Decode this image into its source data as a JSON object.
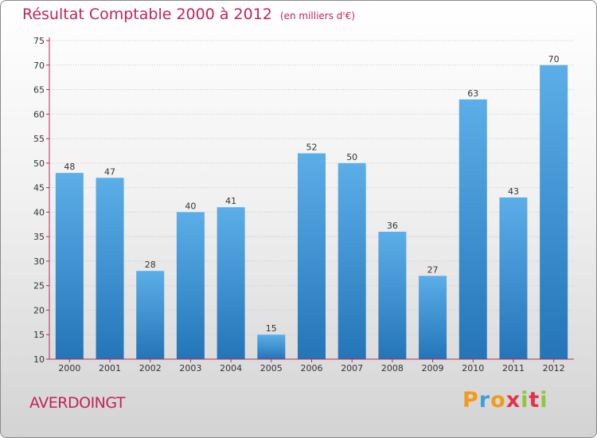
{
  "header": {
    "title": "Résultat Comptable 2000 à 2012",
    "unit": "(en milliers d'€)"
  },
  "footer": {
    "commune": "AVERDOINGT",
    "logo": {
      "letters": [
        "P",
        "r",
        "o",
        "x",
        "i",
        "t",
        "i"
      ],
      "colors": [
        "#f29a1c",
        "#3aa1dc",
        "#f29a1c",
        "#e3334b",
        "#8dc63f",
        "#e3334b",
        "#8dc63f"
      ]
    }
  },
  "colors": {
    "title": "#c0245a",
    "bar_top": "#5caee8",
    "bar_bottom": "#2475b8",
    "axis": "#c0245a",
    "grid": "#c8c8c8"
  },
  "chart_data": {
    "type": "bar",
    "categories": [
      "2000",
      "2001",
      "2002",
      "2003",
      "2004",
      "2005",
      "2006",
      "2007",
      "2008",
      "2009",
      "2010",
      "2011",
      "2012"
    ],
    "values": [
      48,
      47,
      28,
      40,
      41,
      15,
      52,
      50,
      36,
      27,
      63,
      43,
      70
    ],
    "data_labels": [
      "48",
      "47",
      "28",
      "40",
      "41",
      "15",
      "52",
      "50",
      "36",
      "27",
      "63",
      "43",
      "70"
    ],
    "y_ticks": [
      "10",
      "15",
      "20",
      "25",
      "30",
      "35",
      "40",
      "45",
      "50",
      "55",
      "60",
      "65",
      "70",
      "75"
    ],
    "ylim": [
      10,
      75
    ],
    "grid": true,
    "legend": "none"
  }
}
